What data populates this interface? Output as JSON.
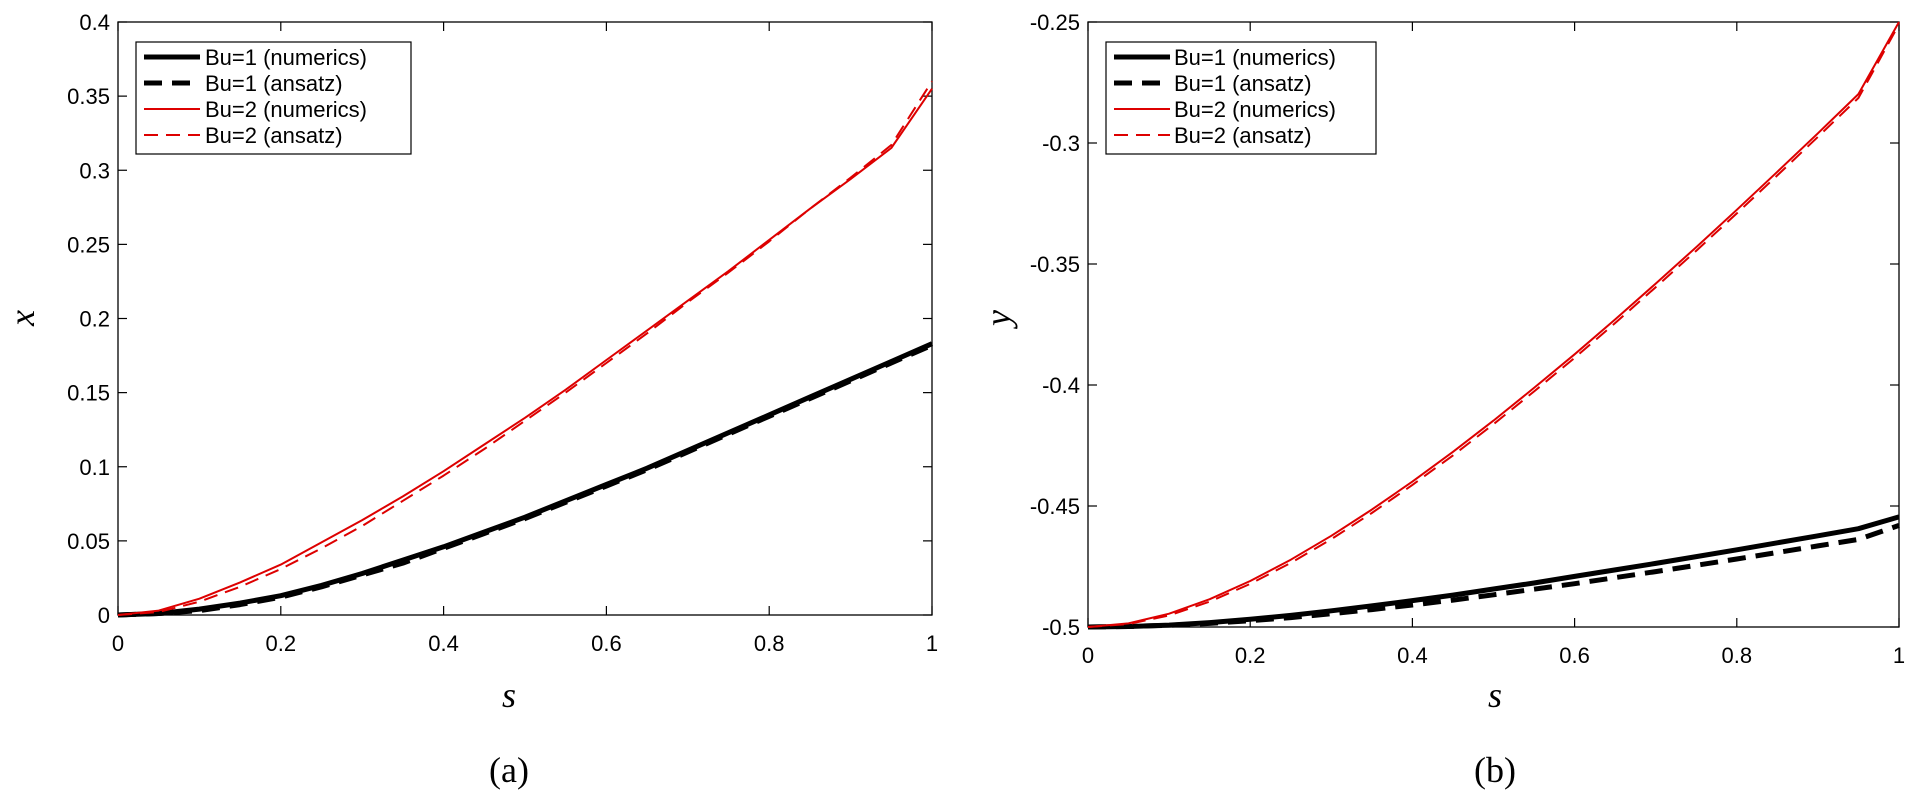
{
  "chart_data": [
    {
      "type": "line",
      "panel_label": "(a)",
      "xlabel": "s",
      "ylabel": "x",
      "xlim": [
        0,
        1
      ],
      "ylim": [
        0,
        0.4
      ],
      "xticks": [
        0,
        0.2,
        0.4,
        0.6,
        0.8,
        1
      ],
      "xtick_labels": [
        "0",
        "0.2",
        "0.4",
        "0.6",
        "0.8",
        "1"
      ],
      "yticks": [
        0,
        0.05,
        0.1,
        0.15,
        0.2,
        0.25,
        0.3,
        0.35,
        0.4
      ],
      "ytick_labels": [
        "0",
        "0.05",
        "0.1",
        "0.15",
        "0.2",
        "0.25",
        "0.3",
        "0.35",
        "0.4"
      ],
      "grid": false,
      "legend_position": "top-left",
      "x": [
        0,
        0.05,
        0.1,
        0.15,
        0.2,
        0.25,
        0.3,
        0.35,
        0.4,
        0.45,
        0.5,
        0.55,
        0.6,
        0.65,
        0.7,
        0.75,
        0.8,
        0.85,
        0.9,
        0.95,
        1
      ],
      "series": [
        {
          "name": "Bu=1 (numerics)",
          "color": "#000000",
          "dash": "solid",
          "weight": "thick",
          "values": [
            0,
            0.001,
            0.004,
            0.008,
            0.013,
            0.02,
            0.028,
            0.037,
            0.046,
            0.056,
            0.066,
            0.077,
            0.088,
            0.099,
            0.111,
            0.123,
            0.135,
            0.147,
            0.159,
            0.171,
            0.183
          ]
        },
        {
          "name": "Bu=1 (ansatz)",
          "color": "#000000",
          "dash": "dashed",
          "weight": "thick",
          "values": [
            0,
            0.001,
            0.003,
            0.007,
            0.012,
            0.019,
            0.027,
            0.035,
            0.045,
            0.055,
            0.065,
            0.076,
            0.087,
            0.098,
            0.11,
            0.122,
            0.134,
            0.146,
            0.158,
            0.17,
            0.182
          ]
        },
        {
          "name": "Bu=2 (numerics)",
          "color": "#dd0000",
          "dash": "solid",
          "weight": "thin",
          "values": [
            0,
            0.003,
            0.011,
            0.022,
            0.034,
            0.049,
            0.064,
            0.08,
            0.097,
            0.115,
            0.133,
            0.152,
            0.172,
            0.192,
            0.212,
            0.232,
            0.253,
            0.274,
            0.294,
            0.315,
            0.355
          ]
        },
        {
          "name": "Bu=2 (ansatz)",
          "color": "#dd0000",
          "dash": "dashed",
          "weight": "thin",
          "values": [
            0,
            0.002,
            0.009,
            0.019,
            0.031,
            0.045,
            0.06,
            0.077,
            0.094,
            0.112,
            0.131,
            0.15,
            0.17,
            0.19,
            0.211,
            0.231,
            0.252,
            0.274,
            0.295,
            0.317,
            0.36
          ]
        }
      ]
    },
    {
      "type": "line",
      "panel_label": "(b)",
      "xlabel": "s",
      "ylabel": "y",
      "xlim": [
        0,
        1
      ],
      "ylim": [
        -0.5,
        -0.25
      ],
      "xticks": [
        0,
        0.2,
        0.4,
        0.6,
        0.8,
        1
      ],
      "xtick_labels": [
        "0",
        "0.2",
        "0.4",
        "0.6",
        "0.8",
        "1"
      ],
      "yticks": [
        -0.5,
        -0.45,
        -0.4,
        -0.35,
        -0.3,
        -0.25
      ],
      "ytick_labels": [
        "-0.5",
        "-0.45",
        "-0.4",
        "-0.35",
        "-0.3",
        "-0.25"
      ],
      "grid": false,
      "legend_position": "top-left",
      "x": [
        0,
        0.05,
        0.1,
        0.15,
        0.2,
        0.25,
        0.3,
        0.35,
        0.4,
        0.45,
        0.5,
        0.55,
        0.6,
        0.65,
        0.7,
        0.75,
        0.8,
        0.85,
        0.9,
        0.95,
        1
      ],
      "series": [
        {
          "name": "Bu=1 (numerics)",
          "color": "#000000",
          "dash": "solid",
          "weight": "thick",
          "values": [
            -0.5,
            -0.4998,
            -0.4992,
            -0.4982,
            -0.4968,
            -0.4952,
            -0.4933,
            -0.4913,
            -0.4891,
            -0.4868,
            -0.4843,
            -0.4818,
            -0.4791,
            -0.4764,
            -0.4737,
            -0.4709,
            -0.4681,
            -0.4652,
            -0.4623,
            -0.4594,
            -0.4545
          ]
        },
        {
          "name": "Bu=1 (ansatz)",
          "color": "#000000",
          "dash": "dashed",
          "weight": "thick",
          "values": [
            -0.5,
            -0.4998,
            -0.4993,
            -0.4985,
            -0.4974,
            -0.4961,
            -0.4945,
            -0.4928,
            -0.4909,
            -0.4889,
            -0.4867,
            -0.4844,
            -0.4821,
            -0.4796,
            -0.4771,
            -0.4745,
            -0.4719,
            -0.4692,
            -0.4665,
            -0.4638,
            -0.458
          ]
        },
        {
          "name": "Bu=2 (numerics)",
          "color": "#dd0000",
          "dash": "solid",
          "weight": "thin",
          "values": [
            -0.5,
            -0.4985,
            -0.4945,
            -0.4885,
            -0.481,
            -0.4722,
            -0.4623,
            -0.4515,
            -0.4399,
            -0.4276,
            -0.4147,
            -0.4012,
            -0.3873,
            -0.3729,
            -0.3581,
            -0.343,
            -0.3276,
            -0.3119,
            -0.296,
            -0.2798,
            -0.25
          ]
        },
        {
          "name": "Bu=2 (ansatz)",
          "color": "#dd0000",
          "dash": "dashed",
          "weight": "thin",
          "values": [
            -0.5,
            -0.4988,
            -0.4952,
            -0.4895,
            -0.4822,
            -0.4735,
            -0.4637,
            -0.4529,
            -0.4413,
            -0.4291,
            -0.4162,
            -0.4027,
            -0.3888,
            -0.3744,
            -0.3596,
            -0.3445,
            -0.3291,
            -0.3134,
            -0.2975,
            -0.2814,
            -0.251
          ]
        }
      ]
    }
  ]
}
